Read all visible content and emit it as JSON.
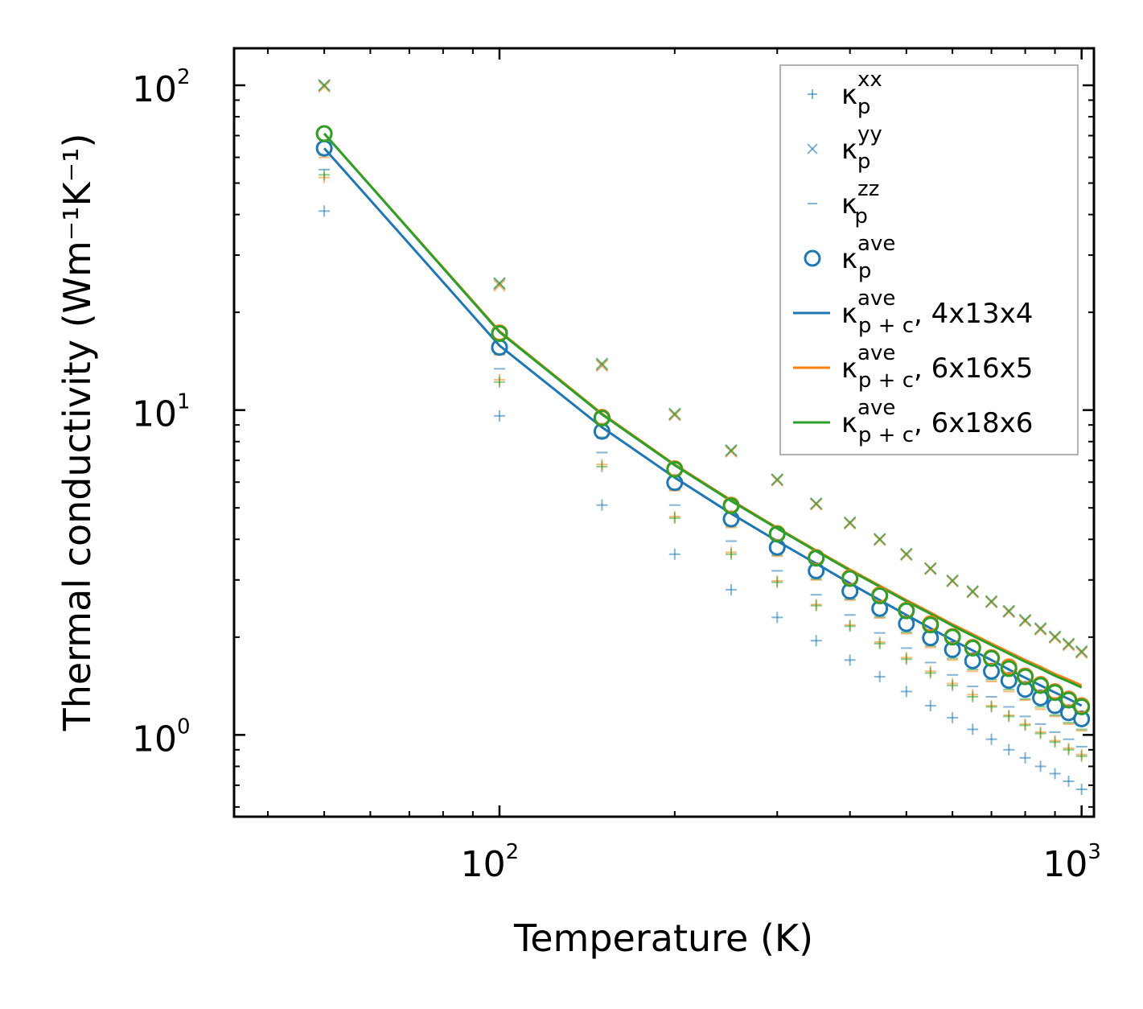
{
  "chart_data": {
    "type": "scatter",
    "xscale": "log",
    "yscale": "log",
    "xlabel": "Temperature (K)",
    "ylabel": "Thermal conductivity (Wm⁻¹K⁻¹)",
    "xlim": [
      35,
      1050
    ],
    "ylim": [
      0.56,
      130
    ],
    "x_ticks": [
      {
        "value": 100,
        "base": "10",
        "exp": "2"
      },
      {
        "value": 1000,
        "base": "10",
        "exp": "3"
      }
    ],
    "y_ticks": [
      {
        "value": 1,
        "base": "10",
        "exp": "0"
      },
      {
        "value": 10,
        "base": "10",
        "exp": "1"
      },
      {
        "value": 100,
        "base": "10",
        "exp": "2"
      }
    ],
    "x": [
      50,
      100,
      150,
      200,
      250,
      300,
      350,
      400,
      450,
      500,
      550,
      600,
      650,
      700,
      750,
      800,
      850,
      900,
      950,
      1000
    ],
    "colors": {
      "c4x13x4": "#1f77b4",
      "c6x16x5": "#ff7f0e",
      "c6x18x6": "#2ca02c"
    },
    "series": [
      {
        "name": "kp_xx",
        "marker": "plus",
        "color": "#1f77b4",
        "alpha": 0.55,
        "values": [
          41,
          9.6,
          5.1,
          3.6,
          2.8,
          2.3,
          1.95,
          1.7,
          1.51,
          1.36,
          1.23,
          1.13,
          1.04,
          0.97,
          0.9,
          0.85,
          0.8,
          0.76,
          0.72,
          0.68
        ]
      },
      {
        "name": "kp_xx_b",
        "marker": "plus",
        "color": "#ff7f0e",
        "alpha": 0.55,
        "values": [
          52,
          12.4,
          6.8,
          4.7,
          3.65,
          2.98,
          2.52,
          2.18,
          1.93,
          1.73,
          1.57,
          1.44,
          1.33,
          1.23,
          1.15,
          1.08,
          1.02,
          0.96,
          0.91,
          0.87
        ]
      },
      {
        "name": "kp_xx_c",
        "marker": "plus",
        "color": "#2ca02c",
        "alpha": 0.55,
        "values": [
          53,
          12.2,
          6.7,
          4.65,
          3.6,
          2.95,
          2.5,
          2.16,
          1.91,
          1.71,
          1.55,
          1.42,
          1.31,
          1.22,
          1.14,
          1.07,
          1.01,
          0.95,
          0.9,
          0.86
        ]
      },
      {
        "name": "kp_yy",
        "marker": "x",
        "color": "#1f77b4",
        "alpha": 0.55,
        "values": [
          100,
          24.5,
          13.8,
          9.7,
          7.5,
          6.1,
          5.15,
          4.5,
          4.0,
          3.6,
          3.25,
          2.98,
          2.76,
          2.57,
          2.4,
          2.25,
          2.12,
          2.0,
          1.9,
          1.8
        ]
      },
      {
        "name": "kp_yy_b",
        "marker": "x",
        "color": "#ff7f0e",
        "alpha": 0.55,
        "values": [
          99,
          24.2,
          13.7,
          9.65,
          7.45,
          6.07,
          5.12,
          4.47,
          3.98,
          3.58,
          3.24,
          2.97,
          2.75,
          2.56,
          2.39,
          2.24,
          2.11,
          1.99,
          1.89,
          1.79
        ]
      },
      {
        "name": "kp_yy_c",
        "marker": "x",
        "color": "#2ca02c",
        "alpha": 0.55,
        "values": [
          100,
          24.6,
          13.9,
          9.75,
          7.52,
          6.12,
          5.16,
          4.51,
          4.01,
          3.61,
          3.26,
          2.99,
          2.77,
          2.58,
          2.41,
          2.26,
          2.13,
          2.01,
          1.91,
          1.81
        ]
      },
      {
        "name": "kp_zz",
        "marker": "dash",
        "color": "#1f77b4",
        "alpha": 0.55,
        "values": [
          55,
          13.4,
          7.4,
          5.1,
          3.95,
          3.2,
          2.7,
          2.34,
          2.06,
          1.85,
          1.67,
          1.53,
          1.41,
          1.31,
          1.22,
          1.14,
          1.08,
          1.02,
          0.97,
          0.92
        ]
      },
      {
        "name": "kp_zz_b",
        "marker": "dash",
        "color": "#ff7f0e",
        "alpha": 0.55,
        "values": [
          60,
          14.8,
          8.2,
          5.65,
          4.35,
          3.55,
          3.0,
          2.6,
          2.29,
          2.05,
          1.86,
          1.7,
          1.57,
          1.46,
          1.36,
          1.28,
          1.2,
          1.14,
          1.08,
          1.03
        ]
      },
      {
        "name": "kp_zz_c",
        "marker": "dash",
        "color": "#2ca02c",
        "alpha": 0.55,
        "values": [
          61,
          14.9,
          8.25,
          5.7,
          4.4,
          3.58,
          3.02,
          2.62,
          2.31,
          2.07,
          1.88,
          1.72,
          1.59,
          1.48,
          1.38,
          1.29,
          1.22,
          1.15,
          1.09,
          1.04
        ]
      },
      {
        "name": "kp_ave",
        "marker": "circle",
        "color": "#1f77b4",
        "alpha": 1.0,
        "values": [
          64,
          15.6,
          8.6,
          5.98,
          4.62,
          3.78,
          3.2,
          2.77,
          2.45,
          2.2,
          1.99,
          1.83,
          1.69,
          1.57,
          1.47,
          1.38,
          1.3,
          1.23,
          1.17,
          1.12
        ]
      },
      {
        "name": "kp_ave_b",
        "marker": "circle",
        "color": "#ff7f0e",
        "alpha": 1.0,
        "values": [
          71,
          17.3,
          9.5,
          6.6,
          5.1,
          4.17,
          3.52,
          3.05,
          2.7,
          2.42,
          2.2,
          2.01,
          1.86,
          1.73,
          1.62,
          1.52,
          1.43,
          1.36,
          1.29,
          1.23
        ]
      },
      {
        "name": "kp_ave_c",
        "marker": "circle",
        "color": "#2ca02c",
        "alpha": 1.0,
        "values": [
          71,
          17.2,
          9.45,
          6.57,
          5.07,
          4.15,
          3.5,
          3.03,
          2.68,
          2.41,
          2.18,
          2.0,
          1.85,
          1.72,
          1.6,
          1.51,
          1.42,
          1.35,
          1.28,
          1.22
        ]
      },
      {
        "name": "kpc_4x13x4",
        "marker": "line",
        "color": "#1f77b4",
        "values": [
          64,
          15.8,
          8.85,
          6.2,
          4.8,
          3.95,
          3.37,
          2.93,
          2.6,
          2.34,
          2.13,
          1.96,
          1.82,
          1.7,
          1.59,
          1.5,
          1.42,
          1.35,
          1.29,
          1.23
        ]
      },
      {
        "name": "kpc_6x16x5",
        "marker": "line",
        "color": "#ff7f0e",
        "values": [
          71,
          17.5,
          9.75,
          6.8,
          5.28,
          4.34,
          3.7,
          3.23,
          2.88,
          2.6,
          2.38,
          2.19,
          2.04,
          1.91,
          1.8,
          1.7,
          1.62,
          1.54,
          1.48,
          1.42
        ]
      },
      {
        "name": "kpc_6x18x6",
        "marker": "line",
        "color": "#2ca02c",
        "values": [
          71,
          17.4,
          9.7,
          6.77,
          5.25,
          4.32,
          3.68,
          3.21,
          2.86,
          2.58,
          2.36,
          2.17,
          2.02,
          1.89,
          1.78,
          1.68,
          1.6,
          1.52,
          1.46,
          1.4
        ]
      }
    ],
    "legend": {
      "placement": "top-right",
      "entries": [
        {
          "marker": "plus",
          "color": "#1f77b4",
          "label": "κ",
          "sub": "p",
          "sup": "xx",
          "suffix": ""
        },
        {
          "marker": "x",
          "color": "#1f77b4",
          "label": "κ",
          "sub": "p",
          "sup": "yy",
          "suffix": ""
        },
        {
          "marker": "dash",
          "color": "#1f77b4",
          "label": "κ",
          "sub": "p",
          "sup": "zz",
          "suffix": ""
        },
        {
          "marker": "circle",
          "color": "#1f77b4",
          "label": "κ",
          "sub": "p",
          "sup": "ave",
          "suffix": ""
        },
        {
          "marker": "line",
          "color": "#1f77b4",
          "label": "κ",
          "sub": "p + c",
          "sup": "ave",
          "suffix": ", 4x13x4"
        },
        {
          "marker": "line",
          "color": "#ff7f0e",
          "label": "κ",
          "sub": "p + c",
          "sup": "ave",
          "suffix": ", 6x16x5"
        },
        {
          "marker": "line",
          "color": "#2ca02c",
          "label": "κ",
          "sub": "p + c",
          "sup": "ave",
          "suffix": ", 6x18x6"
        }
      ]
    }
  }
}
